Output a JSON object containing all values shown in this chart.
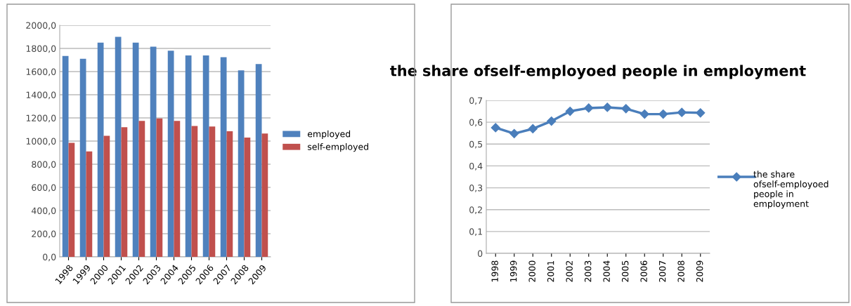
{
  "chart_data": [
    {
      "type": "bar",
      "categories": [
        "1998",
        "1999",
        "2000",
        "2001",
        "2002",
        "2003",
        "2004",
        "2005",
        "2006",
        "2007",
        "2008",
        "2009"
      ],
      "series": [
        {
          "name": "employed",
          "color": "#4f81bd",
          "values": [
            1735,
            1710,
            1850,
            1900,
            1850,
            1815,
            1780,
            1740,
            1740,
            1725,
            1610,
            1665
          ]
        },
        {
          "name": "self-employed",
          "color": "#c0504d",
          "values": [
            985,
            910,
            1045,
            1120,
            1175,
            1195,
            1175,
            1130,
            1125,
            1085,
            1030,
            1065
          ]
        }
      ],
      "ylim": [
        0,
        2000
      ],
      "yticks": [
        {
          "value": 0,
          "label": "0,0"
        },
        {
          "value": 200,
          "label": "200,0"
        },
        {
          "value": 400,
          "label": "400,0"
        },
        {
          "value": 600,
          "label": "600,0"
        },
        {
          "value": 800,
          "label": "800,0"
        },
        {
          "value": 1000,
          "label": "1000,0"
        },
        {
          "value": 1200,
          "label": "1200,0"
        },
        {
          "value": 1400,
          "label": "1400,0"
        },
        {
          "value": 1600,
          "label": "1600,0"
        },
        {
          "value": 1800,
          "label": "1800,0"
        },
        {
          "value": 2000,
          "label": "2000,0"
        }
      ],
      "grid": "y",
      "legend": "right"
    },
    {
      "type": "line",
      "title": "the share ofself-employoed people in employment",
      "categories": [
        "1998",
        "1999",
        "2000",
        "2001",
        "2002",
        "2003",
        "2004",
        "2005",
        "2006",
        "2007",
        "2008",
        "2009"
      ],
      "series": [
        {
          "name": "the share ofself-employoed people in employment",
          "color": "#4a7ebb",
          "values": [
            0.575,
            0.548,
            0.57,
            0.605,
            0.65,
            0.665,
            0.668,
            0.662,
            0.637,
            0.637,
            0.645,
            0.643
          ]
        }
      ],
      "ylim": [
        0,
        0.7
      ],
      "yticks": [
        0,
        {
          "value": 0.1,
          "label": "0,1"
        },
        {
          "value": 0.2,
          "label": "0,2"
        },
        {
          "value": 0.3,
          "label": "0,3"
        },
        {
          "value": 0.4,
          "label": "0,4"
        },
        {
          "value": 0.5,
          "label": "0,5"
        },
        {
          "value": 0.6,
          "label": "0,6"
        },
        {
          "value": 0.7,
          "label": "0,7"
        }
      ],
      "grid": "y",
      "legend": "right",
      "marker": "diamond",
      "line_style": "solid"
    }
  ]
}
